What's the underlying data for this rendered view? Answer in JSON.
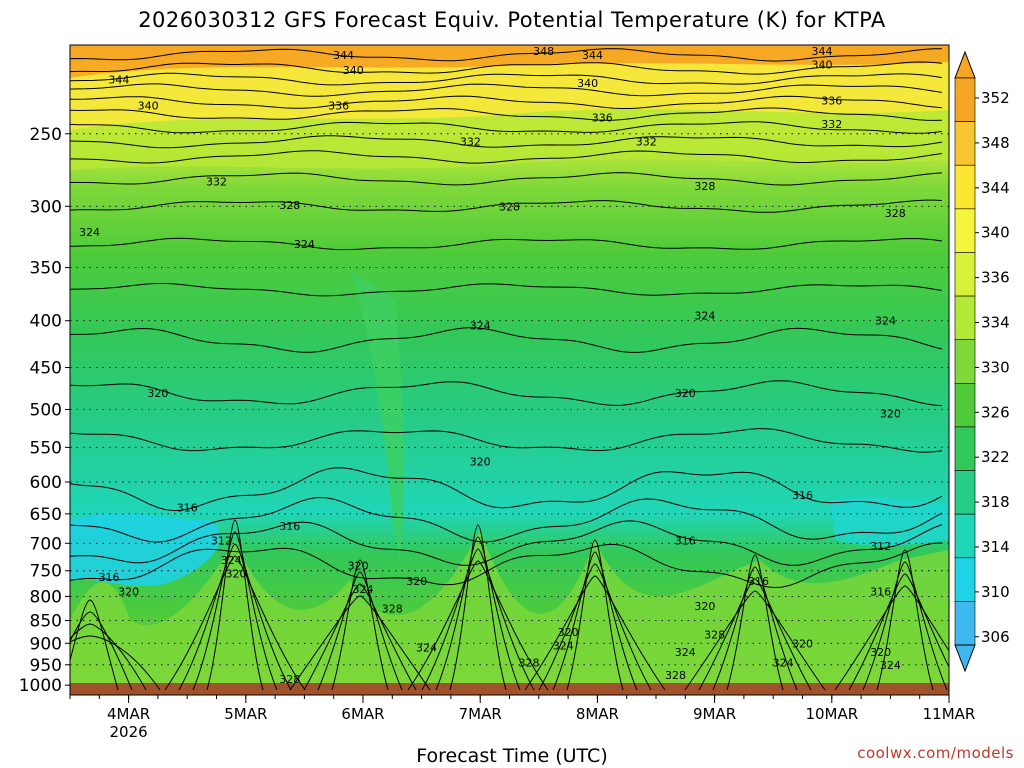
{
  "chart_data": {
    "type": "heatmap",
    "title": "2026030312 GFS Forecast Equiv. Potential Temperature (K) for KTPA",
    "xlabel": "Forecast Time (UTC)",
    "ylabel": "",
    "x_ticks": [
      "4MAR",
      "5MAR",
      "6MAR",
      "7MAR",
      "8MAR",
      "9MAR",
      "10MAR",
      "11MAR"
    ],
    "x_tick_year": "2026",
    "x_range": [
      "2026-03-03T12",
      "2026-03-11T00"
    ],
    "y_scale": "log",
    "y_ticks": [
      250,
      300,
      350,
      400,
      450,
      500,
      550,
      600,
      650,
      700,
      750,
      800,
      850,
      900,
      950,
      1000
    ],
    "y_range_hPa": [
      200,
      1025
    ],
    "y_inverted": true,
    "colorbar": {
      "ticks": [
        352,
        348,
        344,
        340,
        336,
        334,
        330,
        326,
        322,
        318,
        314,
        310,
        306
      ],
      "colors": [
        "#f5a623",
        "#f7c531",
        "#fde632",
        "#f4f43b",
        "#d8f03a",
        "#b2e836",
        "#7fd83a",
        "#4fcb3a",
        "#32c85a",
        "#26cc88",
        "#20d6b8",
        "#1fd2e6",
        "#3fb8ef"
      ]
    },
    "contour_labels": [
      {
        "value": "344",
        "x": "2026-03-03T22",
        "p": 218
      },
      {
        "value": "340",
        "x": "2026-03-04T04",
        "p": 233
      },
      {
        "value": "332",
        "x": "2026-03-04T18",
        "p": 282
      },
      {
        "value": "328",
        "x": "2026-03-05T09",
        "p": 299
      },
      {
        "value": "324",
        "x": "2026-03-03T16",
        "p": 320
      },
      {
        "value": "324",
        "x": "2026-03-05T12",
        "p": 330
      },
      {
        "value": "344",
        "x": "2026-03-05T20",
        "p": 205
      },
      {
        "value": "340",
        "x": "2026-03-05T22",
        "p": 213
      },
      {
        "value": "336",
        "x": "2026-03-05T19",
        "p": 233
      },
      {
        "value": "332",
        "x": "2026-03-06T22",
        "p": 255
      },
      {
        "value": "328",
        "x": "2026-03-07T06",
        "p": 300
      },
      {
        "value": "348",
        "x": "2026-03-07T13",
        "p": 203
      },
      {
        "value": "344",
        "x": "2026-03-07T23",
        "p": 205
      },
      {
        "value": "340",
        "x": "2026-03-07T22",
        "p": 220
      },
      {
        "value": "336",
        "x": "2026-03-08T01",
        "p": 240
      },
      {
        "value": "332",
        "x": "2026-03-08T10",
        "p": 255
      },
      {
        "value": "328",
        "x": "2026-03-08T22",
        "p": 285
      },
      {
        "value": "324",
        "x": "2026-03-07T00",
        "p": 405
      },
      {
        "value": "324",
        "x": "2026-03-08T22",
        "p": 395
      },
      {
        "value": "344",
        "x": "2026-03-09T22",
        "p": 203
      },
      {
        "value": "340",
        "x": "2026-03-09T22",
        "p": 210
      },
      {
        "value": "336",
        "x": "2026-03-10T00",
        "p": 230
      },
      {
        "value": "332",
        "x": "2026-03-10T00",
        "p": 244
      },
      {
        "value": "328",
        "x": "2026-03-10T13",
        "p": 305
      },
      {
        "value": "324",
        "x": "2026-03-10T11",
        "p": 400
      },
      {
        "value": "320",
        "x": "2026-03-04T06",
        "p": 480
      },
      {
        "value": "320",
        "x": "2026-03-07T00",
        "p": 570
      },
      {
        "value": "320",
        "x": "2026-03-08T18",
        "p": 480
      },
      {
        "value": "320",
        "x": "2026-03-10T12",
        "p": 505
      },
      {
        "value": "316",
        "x": "2026-03-09T18",
        "p": 620
      },
      {
        "value": "316",
        "x": "2026-03-04T12",
        "p": 640
      },
      {
        "value": "316",
        "x": "2026-03-05T09",
        "p": 670
      },
      {
        "value": "312",
        "x": "2026-03-04T19",
        "p": 695
      },
      {
        "value": "316",
        "x": "2026-03-08T18",
        "p": 695
      },
      {
        "value": "312",
        "x": "2026-03-10T10",
        "p": 705
      },
      {
        "value": "324",
        "x": "2026-03-04T21",
        "p": 730
      },
      {
        "value": "320",
        "x": "2026-03-04T22",
        "p": 755
      },
      {
        "value": "316",
        "x": "2026-03-03T20",
        "p": 762
      },
      {
        "value": "320",
        "x": "2026-03-04T00",
        "p": 790
      },
      {
        "value": "320",
        "x": "2026-03-05T23",
        "p": 740
      },
      {
        "value": "324",
        "x": "2026-03-06T00",
        "p": 785
      },
      {
        "value": "320",
        "x": "2026-03-06T11",
        "p": 770
      },
      {
        "value": "328",
        "x": "2026-03-06T06",
        "p": 825
      },
      {
        "value": "324",
        "x": "2026-03-06T13",
        "p": 910
      },
      {
        "value": "320",
        "x": "2026-03-07T18",
        "p": 875
      },
      {
        "value": "324",
        "x": "2026-03-07T17",
        "p": 905
      },
      {
        "value": "328",
        "x": "2026-03-07T10",
        "p": 945
      },
      {
        "value": "320",
        "x": "2026-03-08T22",
        "p": 820
      },
      {
        "value": "328",
        "x": "2026-03-09T00",
        "p": 880
      },
      {
        "value": "324",
        "x": "2026-03-08T18",
        "p": 920
      },
      {
        "value": "328",
        "x": "2026-03-08T16",
        "p": 975
      },
      {
        "value": "316",
        "x": "2026-03-09T09",
        "p": 770
      },
      {
        "value": "320",
        "x": "2026-03-09T18",
        "p": 900
      },
      {
        "value": "324",
        "x": "2026-03-09T14",
        "p": 945
      },
      {
        "value": "316",
        "x": "2026-03-10T10",
        "p": 790
      },
      {
        "value": "320",
        "x": "2026-03-10T10",
        "p": 920
      },
      {
        "value": "324",
        "x": "2026-03-10T12",
        "p": 950
      },
      {
        "value": "328",
        "x": "2026-03-05T09",
        "p": 985
      }
    ]
  },
  "page": {
    "title": "2026030312 GFS Forecast Equiv. Potential Temperature (K) for KTPA",
    "x_axis_title": "Forecast Time (UTC)",
    "credit": "coolwx.com/models"
  }
}
